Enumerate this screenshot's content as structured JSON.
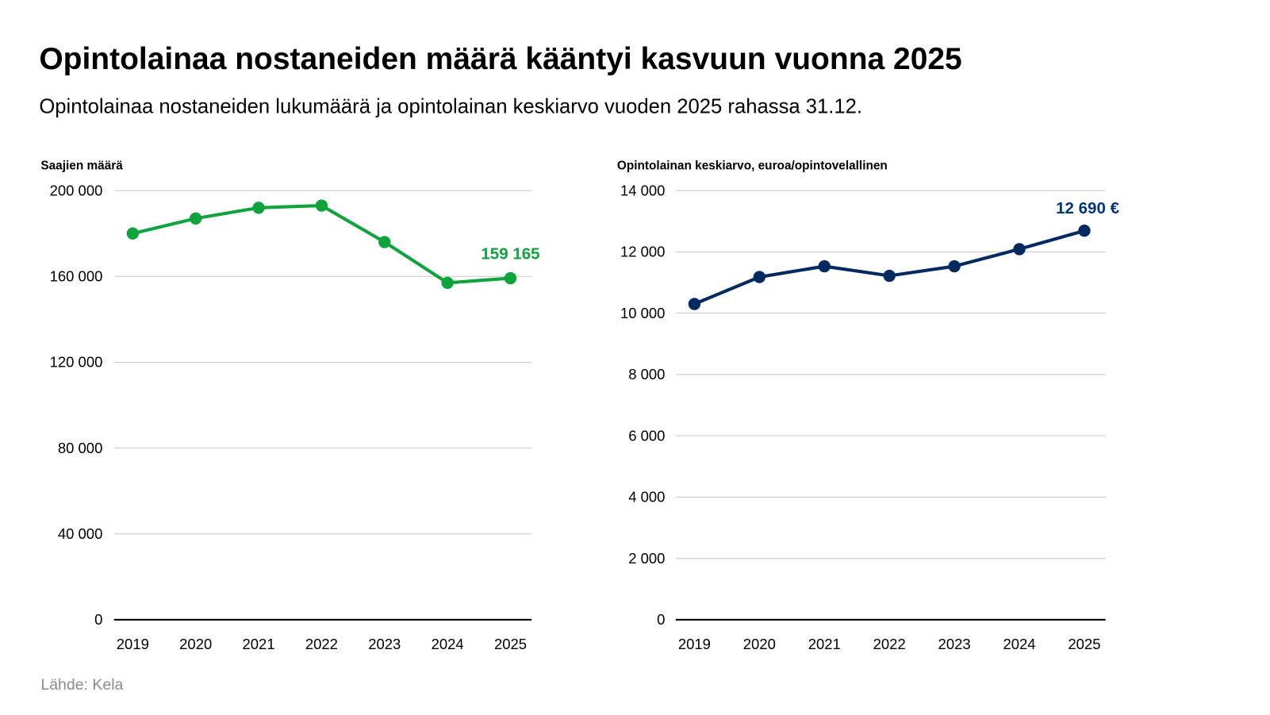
{
  "title": "Opintolainaa nostaneiden määrä kääntyi kasvuun vuonna 2025",
  "subtitle": "Opintolainaa nostaneiden lukumäärä ja opintolainan keskiarvo vuoden 2025 rahassa 31.12.",
  "source": "Lähde: Kela",
  "chart_data": [
    {
      "type": "line",
      "ylabel": "Saajien määrä",
      "categories": [
        "2019",
        "2020",
        "2021",
        "2022",
        "2023",
        "2024",
        "2025"
      ],
      "values": [
        180000,
        187000,
        192000,
        193000,
        176000,
        157000,
        159165
      ],
      "ylim": [
        0,
        200000
      ],
      "yticks": [
        0,
        40000,
        80000,
        120000,
        160000,
        200000
      ],
      "ytick_labels": [
        "0",
        "40 000",
        "80 000",
        "120 000",
        "160 000",
        "200 000"
      ],
      "grid": true,
      "color": "#0fa33c",
      "data_label": "159 165"
    },
    {
      "type": "line",
      "ylabel": "Opintolainan keskiarvo, euroa/opintovelallinen",
      "categories": [
        "2019",
        "2020",
        "2021",
        "2022",
        "2023",
        "2024",
        "2025"
      ],
      "values": [
        10300,
        11180,
        11530,
        11220,
        11530,
        12090,
        12690
      ],
      "ylim": [
        0,
        14000
      ],
      "yticks": [
        0,
        2000,
        4000,
        6000,
        8000,
        10000,
        12000,
        14000
      ],
      "ytick_labels": [
        "0",
        "2 000",
        "4 000",
        "6 000",
        "8 000",
        "10 000",
        "12 000",
        "14 000"
      ],
      "grid": true,
      "color": "#032a60",
      "data_label": "12 690 €"
    }
  ]
}
